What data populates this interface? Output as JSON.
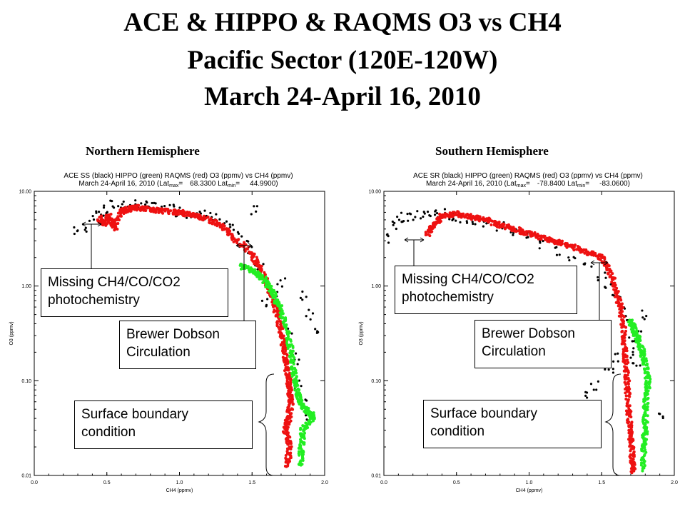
{
  "title": {
    "line1": "ACE & HIPPO & RAQMS O3 vs CH4",
    "line2": "Pacific Sector (120E-120W)",
    "line3": "March 24-April 16, 2010"
  },
  "panels": {
    "north": {
      "heading": "Northern Hemisphere",
      "plot_title": "ACE SS (black) HIPPO (green) RAQMS (red) O3 (ppmv) vs CH4 (ppmv)",
      "plot_subtitle_date": "March 24-April 16, 2010 (Lat",
      "lat_max_sub": "max",
      "lat_max_eq": "=",
      "lat_max_value": "68.3300",
      "lat_min_label": " Lat",
      "lat_min_sub": "min",
      "lat_min_eq": "=",
      "lat_min_value": "44.9900)",
      "callouts": {
        "missing": "Missing CH4/CO/CO2 photochemistry",
        "brewer": "Brewer Dobson Circulation",
        "surface": "Surface boundary condition"
      }
    },
    "south": {
      "heading": "Southern Hemisphere",
      "plot_title": "ACE SR (black) HIPPO (green) RAQMS (red) O3 (ppmv) vs CH4 (ppmv)",
      "plot_subtitle_date": "March 24-April 16, 2010 (Lat",
      "lat_max_sub": "max",
      "lat_max_eq": "=",
      "lat_max_value": "-78.8400",
      "lat_min_label": " Lat",
      "lat_min_sub": "min",
      "lat_min_eq": "=",
      "lat_min_value": "-83.0600)",
      "callouts": {
        "missing": "Missing CH4/CO/CO2 photochemistry",
        "brewer": "Brewer Dobson Circulation",
        "surface": "Surface boundary condition"
      }
    }
  },
  "colors": {
    "ace": "#000000",
    "hippo": "#22ee22",
    "raqms": "#ee1111"
  },
  "chart_data": [
    {
      "type": "scatter",
      "title": "ACE SS (black) HIPPO (green) RAQMS (red) O3 (ppmv) vs CH4 (ppmv)",
      "xlabel": "CH4 (ppmv)",
      "ylabel": "O3 (ppmv)",
      "xlim": [
        0.0,
        2.0
      ],
      "ylim": [
        0.01,
        10.0
      ],
      "yscale": "log",
      "x_ticks": [
        "0.0",
        "0.5",
        "1.0",
        "1.5",
        "2.0"
      ],
      "y_ticks": [
        "10.00",
        "1.00",
        "0.10",
        "0.01"
      ],
      "series": [
        {
          "name": "ACE SS (black)",
          "color": "#000000",
          "kind": "dots",
          "points": [
            [
              0.3,
              3.8
            ],
            [
              0.35,
              4.2
            ],
            [
              0.4,
              5.5
            ],
            [
              0.45,
              6.0
            ],
            [
              0.5,
              6.3
            ],
            [
              0.55,
              7.2
            ],
            [
              0.6,
              7.5
            ],
            [
              0.65,
              6.9
            ],
            [
              0.7,
              7.4
            ],
            [
              0.75,
              7.0
            ],
            [
              0.8,
              7.1
            ],
            [
              0.85,
              6.7
            ],
            [
              0.9,
              6.4
            ],
            [
              0.95,
              6.6
            ],
            [
              1.0,
              6.2
            ],
            [
              1.05,
              5.9
            ],
            [
              1.1,
              6.1
            ],
            [
              1.15,
              5.5
            ],
            [
              1.2,
              5.7
            ],
            [
              1.25,
              5.2
            ],
            [
              1.3,
              4.6
            ],
            [
              1.35,
              4.0
            ],
            [
              1.4,
              3.3
            ],
            [
              1.45,
              2.8
            ],
            [
              1.5,
              2.3
            ],
            [
              1.55,
              1.7
            ],
            [
              1.6,
              1.2
            ],
            [
              1.65,
              0.85
            ],
            [
              1.7,
              0.55
            ],
            [
              1.75,
              0.35
            ],
            [
              1.78,
              0.22
            ],
            [
              1.8,
              0.15
            ],
            [
              1.82,
              0.09
            ],
            [
              1.85,
              0.06
            ],
            [
              1.88,
              0.045
            ],
            [
              1.9,
              0.04
            ],
            [
              1.52,
              6.3
            ],
            [
              1.85,
              0.8
            ],
            [
              1.9,
              0.5
            ],
            [
              1.95,
              0.35
            ],
            [
              1.6,
              0.7
            ],
            [
              1.7,
              1.1
            ]
          ]
        },
        {
          "name": "HIPPO (green)",
          "color": "#22ee22",
          "kind": "band",
          "points": [
            [
              1.42,
              1.65
            ],
            [
              1.5,
              1.45
            ],
            [
              1.55,
              1.3
            ],
            [
              1.6,
              1.1
            ],
            [
              1.65,
              0.8
            ],
            [
              1.7,
              0.55
            ],
            [
              1.74,
              0.35
            ],
            [
              1.77,
              0.2
            ],
            [
              1.79,
              0.12
            ],
            [
              1.81,
              0.08
            ],
            [
              1.83,
              0.06
            ],
            [
              1.86,
              0.05
            ],
            [
              1.9,
              0.045
            ],
            [
              1.92,
              0.042
            ],
            [
              1.85,
              0.03
            ],
            [
              1.84,
              0.02
            ],
            [
              1.83,
              0.012
            ]
          ]
        },
        {
          "name": "RAQMS (red)",
          "color": "#ee1111",
          "kind": "band",
          "points": [
            [
              0.45,
              5.2
            ],
            [
              0.48,
              4.5
            ],
            [
              0.52,
              5.5
            ],
            [
              0.55,
              4.0
            ],
            [
              0.6,
              6.2
            ],
            [
              0.65,
              6.5
            ],
            [
              0.7,
              6.8
            ],
            [
              0.8,
              6.4
            ],
            [
              0.9,
              6.2
            ],
            [
              1.0,
              6.0
            ],
            [
              1.1,
              5.6
            ],
            [
              1.2,
              5.1
            ],
            [
              1.3,
              4.2
            ],
            [
              1.4,
              3.0
            ],
            [
              1.5,
              2.2
            ],
            [
              1.55,
              1.6
            ],
            [
              1.6,
              1.05
            ],
            [
              1.65,
              0.7
            ],
            [
              1.68,
              0.45
            ],
            [
              1.71,
              0.28
            ],
            [
              1.73,
              0.17
            ],
            [
              1.75,
              0.11
            ],
            [
              1.76,
              0.08
            ],
            [
              1.77,
              0.06
            ],
            [
              1.75,
              0.04
            ],
            [
              1.73,
              0.03
            ],
            [
              1.76,
              0.02
            ],
            [
              1.74,
              0.012
            ]
          ]
        }
      ],
      "annotations": [
        "Missing CH4/CO/CO2 photochemistry",
        "Brewer Dobson Circulation",
        "Surface boundary condition"
      ]
    },
    {
      "type": "scatter",
      "title": "ACE SR (black) HIPPO (green) RAQMS (red) O3 (ppmv) vs CH4 (ppmv)",
      "xlabel": "CH4 (ppmv)",
      "ylabel": "O3 (ppmv)",
      "xlim": [
        0.0,
        2.0
      ],
      "ylim": [
        0.01,
        10.0
      ],
      "yscale": "log",
      "x_ticks": [
        "0.0",
        "0.5",
        "1.0",
        "1.5",
        "2.0"
      ],
      "y_ticks": [
        "10.00",
        "1.00",
        "0.10",
        "0.01"
      ],
      "series": [
        {
          "name": "ACE SR (black)",
          "color": "#000000",
          "kind": "dots",
          "points": [
            [
              0.05,
              3.2
            ],
            [
              0.08,
              4.5
            ],
            [
              0.12,
              5.0
            ],
            [
              0.15,
              5.4
            ],
            [
              0.2,
              5.6
            ],
            [
              0.25,
              5.8
            ],
            [
              0.3,
              5.5
            ],
            [
              0.35,
              5.9
            ],
            [
              0.4,
              5.8
            ],
            [
              0.45,
              5.5
            ],
            [
              0.5,
              5.3
            ],
            [
              0.55,
              5.1
            ],
            [
              0.6,
              5.0
            ],
            [
              0.7,
              4.6
            ],
            [
              0.8,
              4.2
            ],
            [
              0.9,
              3.8
            ],
            [
              1.0,
              3.3
            ],
            [
              1.1,
              2.8
            ],
            [
              1.2,
              2.3
            ],
            [
              1.3,
              1.9
            ],
            [
              1.4,
              1.6
            ],
            [
              1.5,
              1.3
            ],
            [
              1.55,
              1.0
            ],
            [
              1.6,
              0.75
            ],
            [
              1.65,
              0.55
            ],
            [
              1.68,
              0.4
            ],
            [
              1.7,
              0.28
            ],
            [
              1.72,
              0.2
            ],
            [
              1.74,
              0.15
            ],
            [
              1.55,
              0.12
            ],
            [
              1.45,
              0.09
            ],
            [
              1.4,
              0.07
            ],
            [
              1.6,
              0.18
            ],
            [
              1.9,
              0.04
            ],
            [
              1.75,
              0.3
            ],
            [
              1.8,
              0.5
            ]
          ]
        },
        {
          "name": "HIPPO (green)",
          "color": "#22ee22",
          "kind": "band",
          "points": [
            [
              1.7,
              0.42
            ],
            [
              1.72,
              0.35
            ],
            [
              1.75,
              0.28
            ],
            [
              1.78,
              0.2
            ],
            [
              1.8,
              0.15
            ],
            [
              1.82,
              0.1
            ],
            [
              1.81,
              0.07
            ],
            [
              1.8,
              0.05
            ],
            [
              1.8,
              0.03
            ],
            [
              1.79,
              0.02
            ],
            [
              1.78,
              0.011
            ]
          ]
        },
        {
          "name": "RAQMS (red)",
          "color": "#ee1111",
          "kind": "band",
          "points": [
            [
              0.3,
              3.5
            ],
            [
              0.35,
              4.5
            ],
            [
              0.4,
              5.5
            ],
            [
              0.5,
              5.8
            ],
            [
              0.6,
              5.4
            ],
            [
              0.7,
              5.0
            ],
            [
              0.8,
              4.4
            ],
            [
              0.9,
              4.0
            ],
            [
              1.0,
              3.6
            ],
            [
              1.1,
              3.2
            ],
            [
              1.2,
              2.9
            ],
            [
              1.3,
              2.6
            ],
            [
              1.4,
              2.3
            ],
            [
              1.5,
              2.0
            ],
            [
              1.55,
              1.5
            ],
            [
              1.6,
              0.9
            ],
            [
              1.63,
              0.6
            ],
            [
              1.65,
              0.35
            ],
            [
              1.66,
              0.2
            ],
            [
              1.67,
              0.12
            ],
            [
              1.68,
              0.07
            ],
            [
              1.69,
              0.04
            ],
            [
              1.7,
              0.025
            ],
            [
              1.71,
              0.015
            ],
            [
              1.72,
              0.011
            ]
          ]
        }
      ],
      "annotations": [
        "Missing CH4/CO/CO2 photochemistry",
        "Brewer Dobson Circulation",
        "Surface boundary condition"
      ]
    }
  ]
}
